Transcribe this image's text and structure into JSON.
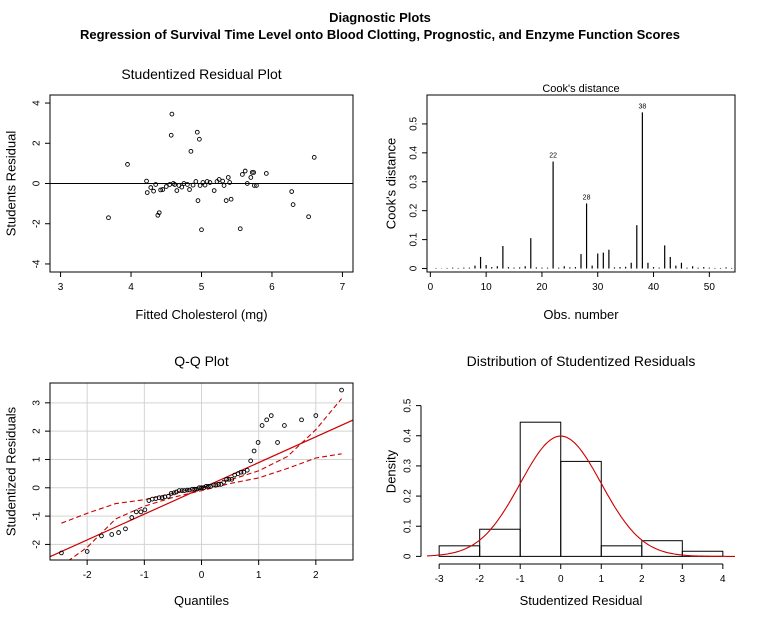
{
  "header": {
    "title": "Diagnostic Plots",
    "subtitle": "Regression of Survival Time Level onto Blood Clotting, Prognostic, and Enzyme Function Scores"
  },
  "colors": {
    "fit_line": "#cc0000",
    "axis": "#000000",
    "grid": "#d3d3d3"
  },
  "chart_data": [
    {
      "id": "residual",
      "type": "scatter",
      "title": "Studentized Residual Plot",
      "xlabel": "Fitted Cholesterol (mg)",
      "ylabel": "Students Residual",
      "xlim": [
        2.85,
        7.15
      ],
      "ylim": [
        -4.4,
        4.4
      ],
      "xticks": [
        3,
        4,
        5,
        6,
        7
      ],
      "yticks": [
        -4,
        -2,
        0,
        2,
        4
      ],
      "hline": 0,
      "points": [
        [
          3.68,
          -1.7
        ],
        [
          3.95,
          0.95
        ],
        [
          4.22,
          0.12
        ],
        [
          4.23,
          -0.45
        ],
        [
          4.28,
          -0.2
        ],
        [
          4.32,
          -0.38
        ],
        [
          4.35,
          -0.05
        ],
        [
          4.38,
          -1.58
        ],
        [
          4.4,
          -1.45
        ],
        [
          4.42,
          -0.32
        ],
        [
          4.45,
          -0.3
        ],
        [
          4.5,
          -0.15
        ],
        [
          4.55,
          -0.05
        ],
        [
          4.57,
          2.4
        ],
        [
          4.58,
          3.45
        ],
        [
          4.6,
          0.0
        ],
        [
          4.62,
          -0.05
        ],
        [
          4.65,
          -0.35
        ],
        [
          4.68,
          -0.1
        ],
        [
          4.72,
          -0.18
        ],
        [
          4.75,
          0.0
        ],
        [
          4.8,
          -0.05
        ],
        [
          4.83,
          -0.3
        ],
        [
          4.85,
          1.6
        ],
        [
          4.88,
          -0.08
        ],
        [
          4.92,
          0.1
        ],
        [
          4.94,
          2.55
        ],
        [
          4.95,
          -0.85
        ],
        [
          4.97,
          2.2
        ],
        [
          4.98,
          -0.1
        ],
        [
          5.0,
          -2.3
        ],
        [
          5.02,
          0.05
        ],
        [
          5.05,
          -0.08
        ],
        [
          5.08,
          0.1
        ],
        [
          5.12,
          0.05
        ],
        [
          5.18,
          -0.35
        ],
        [
          5.22,
          0.1
        ],
        [
          5.25,
          0.2
        ],
        [
          5.3,
          0.12
        ],
        [
          5.32,
          -0.1
        ],
        [
          5.35,
          -0.85
        ],
        [
          5.38,
          0.3
        ],
        [
          5.4,
          0.05
        ],
        [
          5.42,
          -0.78
        ],
        [
          5.55,
          -2.25
        ],
        [
          5.58,
          0.45
        ],
        [
          5.62,
          0.62
        ],
        [
          5.65,
          0.0
        ],
        [
          5.7,
          0.3
        ],
        [
          5.72,
          0.55
        ],
        [
          5.74,
          0.55
        ],
        [
          5.75,
          -0.1
        ],
        [
          5.78,
          -0.1
        ],
        [
          5.92,
          0.5
        ],
        [
          6.28,
          -0.4
        ],
        [
          6.3,
          -1.05
        ],
        [
          6.52,
          -1.65
        ],
        [
          6.6,
          1.3
        ]
      ]
    },
    {
      "id": "cooks",
      "type": "bar",
      "title": "Cook's distance",
      "xlabel": "Obs. number",
      "ylabel": "Cook's distance",
      "xlim": [
        -0.6,
        54.6
      ],
      "ylim": [
        -0.012,
        0.6
      ],
      "xticks": [
        0,
        10,
        20,
        30,
        40,
        50
      ],
      "yticks": [
        0.0,
        0.1,
        0.2,
        0.3,
        0.4,
        0.5
      ],
      "x": [
        1,
        2,
        3,
        4,
        5,
        6,
        7,
        8,
        9,
        10,
        11,
        12,
        13,
        14,
        15,
        16,
        17,
        18,
        19,
        20,
        21,
        22,
        23,
        24,
        25,
        26,
        27,
        28,
        29,
        30,
        31,
        32,
        33,
        34,
        35,
        36,
        37,
        38,
        39,
        40,
        41,
        42,
        43,
        44,
        45,
        46,
        47,
        48,
        49,
        50,
        51,
        52,
        53,
        54
      ],
      "values": [
        0.002,
        0.001,
        0.002,
        0.003,
        0.002,
        0.003,
        0.003,
        0.01,
        0.04,
        0.012,
        0.005,
        0.008,
        0.078,
        0.005,
        0.003,
        0.004,
        0.008,
        0.105,
        0.004,
        0.003,
        0.003,
        0.37,
        0.003,
        0.008,
        0.004,
        0.005,
        0.05,
        0.225,
        0.01,
        0.052,
        0.055,
        0.065,
        0.004,
        0.005,
        0.006,
        0.02,
        0.15,
        0.54,
        0.02,
        0.005,
        0.003,
        0.08,
        0.04,
        0.01,
        0.02,
        0.003,
        0.008,
        0.003,
        0.005,
        0.003,
        0.002,
        0.002,
        0.004,
        0.002
      ],
      "labels": [
        {
          "obs": 22,
          "text": "22"
        },
        {
          "obs": 28,
          "text": "28"
        },
        {
          "obs": 38,
          "text": "38"
        }
      ]
    },
    {
      "id": "qq",
      "type": "scatter",
      "title": "Q-Q Plot",
      "xlabel": "Quantiles",
      "ylabel": "Studentized Residuals",
      "xlim": [
        -2.65,
        2.65
      ],
      "ylim": [
        -2.55,
        3.7
      ],
      "xticks": [
        -2,
        -1,
        0,
        1,
        2
      ],
      "yticks": [
        -2,
        -1,
        0,
        1,
        2,
        3
      ],
      "grid": true,
      "reference_line": {
        "intercept": -0.02,
        "slope": 0.91
      },
      "envelope": {
        "q": [
          -2.45,
          -2.0,
          -1.5,
          -1.0,
          -0.5,
          0.0,
          0.5,
          1.0,
          1.5,
          2.0,
          2.45
        ],
        "upper": [
          -1.25,
          -0.9,
          -0.56,
          -0.42,
          -0.2,
          0.05,
          0.28,
          0.6,
          1.1,
          2.05,
          3.15
        ],
        "lower": [
          -2.75,
          -2.1,
          -1.1,
          -0.65,
          -0.34,
          -0.1,
          0.15,
          0.35,
          0.68,
          1.05,
          1.2
        ]
      },
      "points": [
        [
          -2.45,
          -2.3
        ],
        [
          -2.0,
          -2.25
        ],
        [
          -1.75,
          -1.7
        ],
        [
          -1.57,
          -1.65
        ],
        [
          -1.45,
          -1.58
        ],
        [
          -1.33,
          -1.45
        ],
        [
          -1.22,
          -1.05
        ],
        [
          -1.14,
          -0.85
        ],
        [
          -1.06,
          -0.85
        ],
        [
          -0.99,
          -0.78
        ],
        [
          -0.92,
          -0.45
        ],
        [
          -0.86,
          -0.4
        ],
        [
          -0.8,
          -0.38
        ],
        [
          -0.74,
          -0.35
        ],
        [
          -0.69,
          -0.35
        ],
        [
          -0.64,
          -0.32
        ],
        [
          -0.58,
          -0.3
        ],
        [
          -0.53,
          -0.2
        ],
        [
          -0.48,
          -0.18
        ],
        [
          -0.44,
          -0.15
        ],
        [
          -0.39,
          -0.1
        ],
        [
          -0.34,
          -0.1
        ],
        [
          -0.3,
          -0.1
        ],
        [
          -0.25,
          -0.08
        ],
        [
          -0.21,
          -0.08
        ],
        [
          -0.16,
          -0.05
        ],
        [
          -0.12,
          -0.05
        ],
        [
          -0.08,
          -0.05
        ],
        [
          -0.04,
          0.0
        ],
        [
          0.0,
          0.0
        ],
        [
          0.04,
          0.0
        ],
        [
          0.08,
          0.05
        ],
        [
          0.12,
          0.05
        ],
        [
          0.16,
          0.05
        ],
        [
          0.21,
          0.1
        ],
        [
          0.25,
          0.1
        ],
        [
          0.3,
          0.12
        ],
        [
          0.34,
          0.12
        ],
        [
          0.39,
          0.2
        ],
        [
          0.44,
          0.3
        ],
        [
          0.48,
          0.3
        ],
        [
          0.53,
          0.3
        ],
        [
          0.58,
          0.45
        ],
        [
          0.64,
          0.5
        ],
        [
          0.69,
          0.55
        ],
        [
          0.74,
          0.55
        ],
        [
          0.8,
          0.62
        ],
        [
          0.86,
          0.95
        ],
        [
          0.92,
          1.3
        ],
        [
          0.99,
          1.6
        ],
        [
          1.06,
          2.2
        ],
        [
          1.14,
          2.4
        ],
        [
          1.22,
          2.55
        ],
        [
          1.33,
          1.6
        ],
        [
          1.45,
          2.2
        ],
        [
          1.75,
          2.4
        ],
        [
          2.0,
          2.55
        ],
        [
          2.45,
          3.45
        ]
      ]
    },
    {
      "id": "hist",
      "type": "bar",
      "title": "Distribution of Studentized Residuals",
      "xlabel": "Studentized Residual",
      "ylabel": "Density",
      "xlim": [
        -3.3,
        4.3
      ],
      "ylim": [
        -0.012,
        0.575
      ],
      "xticks": [
        -3,
        -2,
        -1,
        0,
        1,
        2,
        3,
        4
      ],
      "yticks": [
        0.0,
        0.1,
        0.2,
        0.3,
        0.4,
        0.5
      ],
      "bins": [
        {
          "from": -3,
          "to": -2,
          "density": 0.035
        },
        {
          "from": -2,
          "to": -1,
          "density": 0.09
        },
        {
          "from": -1,
          "to": 0,
          "density": 0.445
        },
        {
          "from": 0,
          "to": 1,
          "density": 0.315
        },
        {
          "from": 1,
          "to": 2,
          "density": 0.035
        },
        {
          "from": 2,
          "to": 3,
          "density": 0.052
        },
        {
          "from": 3,
          "to": 4,
          "density": 0.017
        }
      ],
      "curve": {
        "type": "normal-density",
        "mean": 0,
        "sd": 1
      }
    }
  ]
}
